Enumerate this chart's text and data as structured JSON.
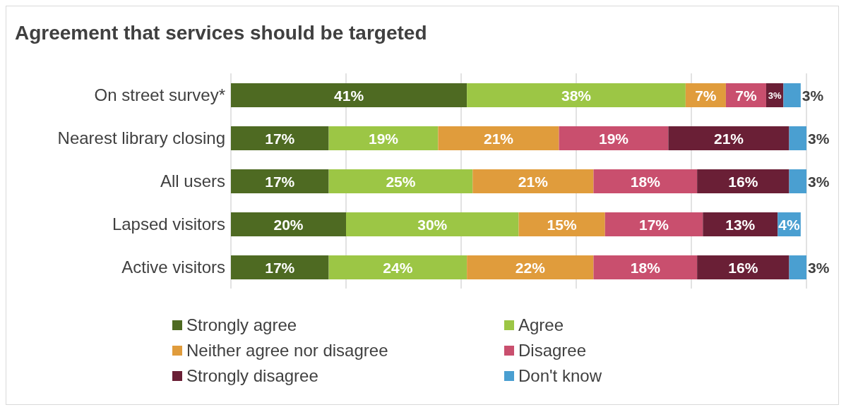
{
  "chart_data": {
    "type": "bar",
    "orientation": "horizontal",
    "stacked": true,
    "title": "Agreement that services should be targeted",
    "categories": [
      "On street survey*",
      "Nearest library closing",
      "All users",
      "Lapsed visitors",
      "Active visitors"
    ],
    "series": [
      {
        "name": "Strongly agree",
        "color": "#4e6a22",
        "values": [
          41,
          17,
          17,
          20,
          17
        ],
        "value_labels": [
          "41%",
          "17%",
          "17%",
          "20%",
          "17%"
        ]
      },
      {
        "name": "Agree",
        "color": "#9cc645",
        "values": [
          38,
          19,
          25,
          30,
          24
        ],
        "value_labels": [
          "38%",
          "19%",
          "25%",
          "30%",
          "24%"
        ]
      },
      {
        "name": "Neither agree nor disagree",
        "color": "#e09c3c",
        "values": [
          7,
          21,
          21,
          15,
          22
        ],
        "value_labels": [
          "7%",
          "21%",
          "21%",
          "15%",
          "22%"
        ]
      },
      {
        "name": "Disagree",
        "color": "#c94f6e",
        "values": [
          7,
          19,
          18,
          17,
          18
        ],
        "value_labels": [
          "7%",
          "19%",
          "18%",
          "17%",
          "18%"
        ]
      },
      {
        "name": "Strongly disagree",
        "color": "#6a1f36",
        "values": [
          3,
          21,
          16,
          13,
          16
        ],
        "value_labels": [
          "3%",
          "21%",
          "16%",
          "13%",
          "16%"
        ]
      },
      {
        "name": "Don't know",
        "color": "#4a9fd1",
        "values": [
          3,
          3,
          3,
          4,
          3
        ],
        "value_labels": [
          "3%",
          "3%",
          "3%",
          "4%",
          "3%"
        ]
      }
    ],
    "xlim": [
      0,
      100
    ],
    "xticks": [
      {
        "value": 0,
        "label": null
      },
      {
        "value": 20,
        "label": null
      },
      {
        "value": 40,
        "label": null
      },
      {
        "value": 60,
        "label": null
      },
      {
        "value": 80,
        "label": null
      },
      {
        "value": 100,
        "label": null
      }
    ],
    "tick_labels": "y",
    "grid": "x",
    "legend": "bottom"
  }
}
